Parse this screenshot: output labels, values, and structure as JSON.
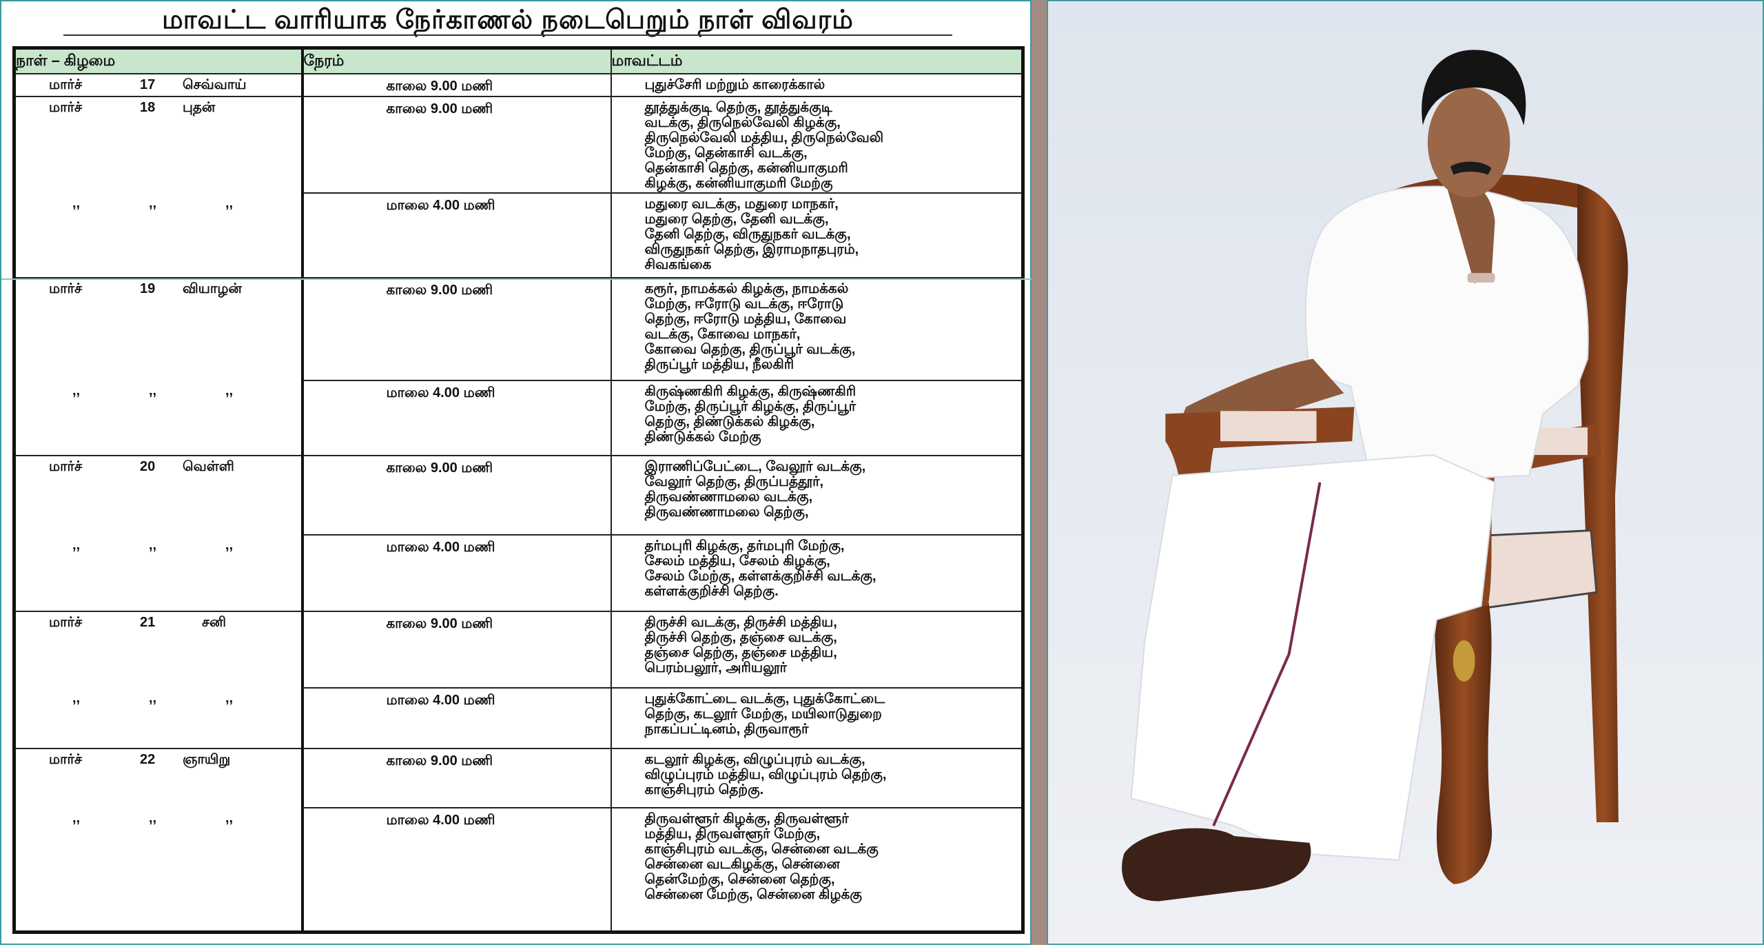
{
  "title": "மாவட்ட வாரியாக நேர்காணல் நடைபெறும் நாள் விவரம்",
  "table": {
    "headers": [
      "நாள் – கிழமை",
      "நேரம்",
      "மாவட்டம்"
    ],
    "ditto": ",,",
    "days": [
      {
        "month": "மார்ச்",
        "date": "17",
        "weekday": "செவ்வாய்",
        "slots": [
          {
            "time": "காலை 9.00 மணி",
            "lines": [
              "புதுச்சேரி மற்றும் காரைக்கால்"
            ]
          }
        ]
      },
      {
        "month": "மார்ச்",
        "date": "18",
        "weekday": "புதன்",
        "slots": [
          {
            "time": "காலை 9.00 மணி",
            "lines": [
              "தூத்துக்குடி தெற்கு, தூத்துக்குடி",
              "வடக்கு, திருநெல்வேலி கிழக்கு,",
              "திருநெல்வேலி மத்திய, திருநெல்வேலி",
              "மேற்கு, தென்காசி வடக்கு,",
              "தென்காசி தெற்கு, கன்னியாகுமரி",
              "கிழக்கு, கன்னியாகுமரி மேற்கு"
            ]
          },
          {
            "time": "மாலை 4.00 மணி",
            "lines": [
              "மதுரை வடக்கு, மதுரை மாநகர்,",
              "மதுரை தெற்கு, தேனி வடக்கு,",
              "தேனி தெற்கு, விருதுநகர் வடக்கு,",
              "விருதுநகர் தெற்கு, இராமநாதபுரம்,",
              "சிவகங்கை"
            ]
          }
        ]
      },
      {
        "month": "மார்ச்",
        "date": "19",
        "weekday": "வியாழன்",
        "slots": [
          {
            "time": "காலை 9.00 மணி",
            "lines": [
              "கரூர், நாமக்கல் கிழக்கு, நாமக்கல்",
              "மேற்கு, ஈரோடு வடக்கு, ஈரோடு",
              "தெற்கு, ஈரோடு மத்திய, கோவை",
              "வடக்கு, கோவை மாநகர்,",
              "கோவை தெற்கு, திருப்பூர் வடக்கு,",
              "திருப்பூர் மத்திய, நீலகிரி"
            ]
          },
          {
            "time": "மாலை 4.00 மணி",
            "lines": [
              "கிருஷ்ணகிரி கிழக்கு, கிருஷ்ணகிரி",
              "மேற்கு, திருப்பூர் கிழக்கு, திருப்பூர்",
              "தெற்கு, திண்டுக்கல் கிழக்கு,",
              "திண்டுக்கல் மேற்கு"
            ]
          }
        ]
      },
      {
        "month": "மார்ச்",
        "date": "20",
        "weekday": "வெள்ளி",
        "slots": [
          {
            "time": "காலை 9.00 மணி",
            "lines": [
              "இராணிப்பேட்டை, வேலூர் வடக்கு,",
              "வேலூர் தெற்கு, திருப்பத்தூர்,",
              "திருவண்ணாமலை வடக்கு,",
              "திருவண்ணாமலை தெற்கு,"
            ]
          },
          {
            "time": "மாலை 4.00 மணி",
            "lines": [
              "தர்மபுரி கிழக்கு, தர்மபுரி மேற்கு,",
              "சேலம் மத்திய, சேலம் கிழக்கு,",
              "சேலம் மேற்கு, கள்ளக்குறிச்சி வடக்கு,",
              "கள்ளக்குறிச்சி தெற்கு."
            ]
          }
        ]
      },
      {
        "month": "மார்ச்",
        "date": "21",
        "weekday": "சனி",
        "slots": [
          {
            "time": "காலை 9.00 மணி",
            "lines": [
              "திருச்சி வடக்கு, திருச்சி மத்திய,",
              "திருச்சி தெற்கு, தஞ்சை வடக்கு,",
              "தஞ்சை தெற்கு, தஞ்சை மத்திய,",
              "பெரம்பலூர், அரியலூர்"
            ]
          },
          {
            "time": "மாலை 4.00 மணி",
            "lines": [
              "புதுக்கோட்டை வடக்கு, புதுக்கோட்டை",
              "தெற்கு, கடலூர் மேற்கு, மயிலாடுதுறை",
              "நாகப்பட்டினம், திருவாரூர்"
            ]
          }
        ]
      },
      {
        "month": "மார்ச்",
        "date": "22",
        "weekday": "ஞாயிறு",
        "slots": [
          {
            "time": "காலை 9.00 மணி",
            "lines": [
              "கடலூர் கிழக்கு, விழுப்புரம் வடக்கு,",
              "விழுப்புரம் மத்திய, விழுப்புரம் தெற்கு,",
              "காஞ்சிபுரம் தெற்கு."
            ]
          },
          {
            "time": "மாலை 4.00 மணி",
            "lines": [
              "திருவள்ளூர் கிழக்கு, திருவள்ளூர்",
              "மத்திய, திருவள்ளூர் மேற்கு,",
              "காஞ்சிபுரம் வடக்கு, சென்னை வடக்கு",
              "சென்னை வடகிழக்கு, சென்னை",
              "தென்மேற்கு, சென்னை தெற்கு,",
              "சென்னை மேற்கு, சென்னை கிழக்கு"
            ]
          }
        ]
      }
    ]
  },
  "colors": {
    "header_bg": "#c8e6cc",
    "frame": "#3a9aa0",
    "strip": "#a48c84",
    "photo_bg": "#e6eaf0"
  }
}
